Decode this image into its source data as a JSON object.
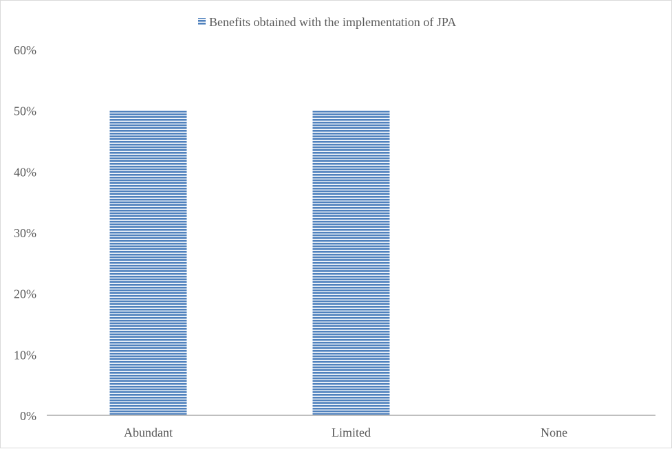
{
  "chart_data": {
    "type": "bar",
    "categories": [
      "Abundant",
      "Limited",
      "None"
    ],
    "series": [
      {
        "name": "Benefits obtained with the implementation of JPA",
        "values": [
          50,
          50,
          0
        ]
      }
    ],
    "y_ticks": [
      "0%",
      "10%",
      "20%",
      "30%",
      "40%",
      "50%",
      "60%"
    ],
    "ylim": [
      0,
      60
    ],
    "unit": "%",
    "grid": false,
    "legend_position": "top",
    "bar_fill": "horizontal-stripes",
    "colors": {
      "bar": "#4f81bd",
      "bar_stripe": "#ffffff",
      "axis": "#bfbfbf",
      "text": "#595959"
    }
  }
}
